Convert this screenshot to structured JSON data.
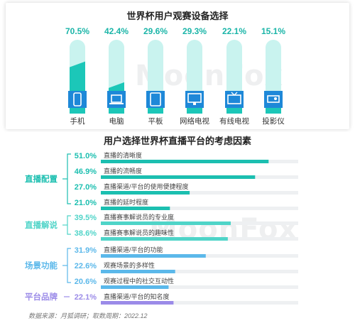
{
  "watermark": "MoonFox",
  "footer": {
    "source": "数据来源：月狐调研；取数周期：2022.12"
  },
  "chart_data": [
    {
      "type": "bar",
      "title": "世界杯用户观赛设备选择",
      "categories": [
        "手机",
        "电脑",
        "平板",
        "网络电视",
        "有线电视",
        "投影仪"
      ],
      "values": [
        70.5,
        42.4,
        29.6,
        29.3,
        22.1,
        15.1
      ],
      "value_labels": [
        "70.5%",
        "42.4%",
        "29.6%",
        "29.3%",
        "22.1%",
        "15.1%"
      ],
      "icons": [
        "phone-icon",
        "laptop-icon",
        "tablet-icon",
        "monitor-icon",
        "tv-icon",
        "projector-icon"
      ],
      "colors": {
        "bar": "#1CC7B8",
        "icon": "#1E88D8",
        "track": "#C9F3EF"
      },
      "ylim": [
        0,
        100
      ]
    },
    {
      "type": "bar",
      "orientation": "horizontal",
      "title": "用户选择世界杯直播平台的考虑因素",
      "groups": [
        {
          "name": "直播配置",
          "color": "#1CBFB0",
          "items": [
            {
              "label": "直播的清晰度",
              "value": 51.0,
              "text": "51.0%"
            },
            {
              "label": "直播的流畅度",
              "value": 46.9,
              "text": "46.9%"
            },
            {
              "label": "直播渠道/平台的使用便捷程度",
              "value": 27.0,
              "text": "27.0%"
            },
            {
              "label": "直播的延时程度",
              "value": 21.0,
              "text": "21.0%"
            }
          ]
        },
        {
          "name": "直播解说",
          "color": "#4FD4C8",
          "items": [
            {
              "label": "直播赛事解说员的专业度",
              "value": 39.5,
              "text": "39.5%"
            },
            {
              "label": "直播赛事解说员的趣味性",
              "value": 38.6,
              "text": "38.6%"
            }
          ]
        },
        {
          "name": "场景功能",
          "color": "#5BB8EA",
          "items": [
            {
              "label": "直播渠道/平台的功能",
              "value": 31.9,
              "text": "31.9%"
            },
            {
              "label": "观赛场景的多样性",
              "value": 22.6,
              "text": "22.6%"
            },
            {
              "label": "观赛过程中的社交互动性",
              "value": 20.6,
              "text": "20.6%"
            }
          ]
        },
        {
          "name": "平台品牌",
          "color": "#9B8BE8",
          "items": [
            {
              "label": "直播渠道/平台的知名度",
              "value": 22.1,
              "text": "22.1%"
            }
          ]
        }
      ],
      "track_color": "#EEF0F2",
      "xlim": [
        0,
        60
      ]
    }
  ]
}
